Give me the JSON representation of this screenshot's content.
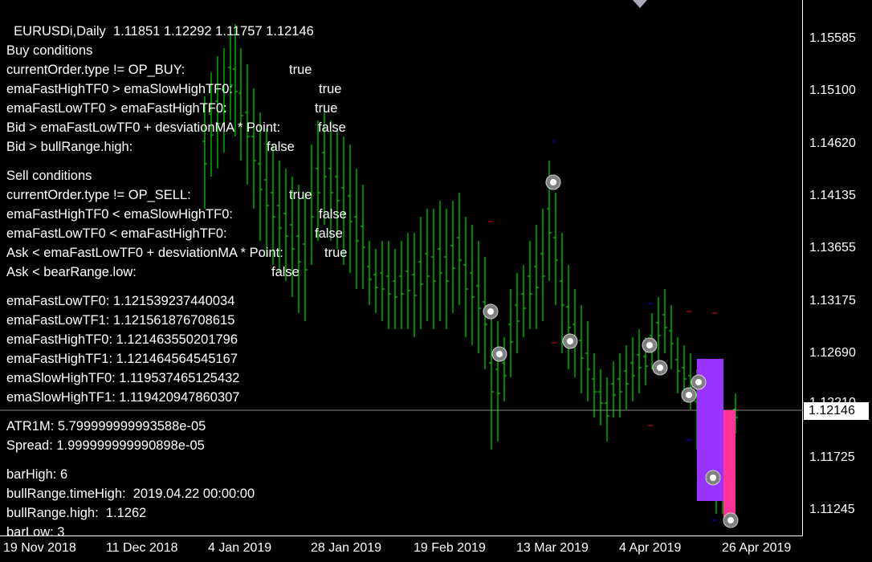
{
  "header": {
    "symbol_tf": "EURUSDi,Daily",
    "ohlc": "1.11851 1.12292 1.11757 1.12146"
  },
  "buy": {
    "title": "Buy conditions",
    "rows": [
      {
        "label": "currentOrder.type != OP_BUY:",
        "value": "true"
      },
      {
        "label": "emaFastHighTF0 > emaSlowHighTF0:",
        "value": "true"
      },
      {
        "label": "emaFastLowTF0 > emaFastHighTF0:",
        "value": "true"
      },
      {
        "label": "Bid > emaFastLowTF0 + desviationMA * Point:",
        "value": "false"
      },
      {
        "label": "Bid > bullRange.high:",
        "value": "false"
      }
    ]
  },
  "sell": {
    "title": "Sell conditions",
    "rows": [
      {
        "label": "currentOrder.type != OP_SELL:",
        "value": "true"
      },
      {
        "label": "emaFastHighTF0 < emaSlowHighTF0:",
        "value": "false"
      },
      {
        "label": "emaFastLowTF0 < emaFastHighTF0:",
        "value": "false"
      },
      {
        "label": "Ask < emaFastLowTF0 + desviationMA * Point:",
        "value": "true"
      },
      {
        "label": "Ask < bearRange.low:",
        "value": "false"
      }
    ]
  },
  "ema": [
    "emaFastLowTF0: 1.121539237440034",
    "emaFastLowTF1: 1.121561876708615",
    "emaFastHighTF0: 1.121463550201796",
    "emaFastHighTF1: 1.121464564545167",
    "emaSlowHighTF0: 1.119537465125432",
    "emaSlowHighTF1: 1.119420947860307"
  ],
  "atr": "ATR1M: 5.799999999993588e-05",
  "spread": "Spread: 1.999999999990898e-05",
  "bar": [
    "barHigh: 6",
    "bullRange.timeHigh:  2019.04.22 00:00:00",
    "bullRange.high:  1.1262",
    "barLow: 3"
  ],
  "price_axis": [
    "1.15585",
    "1.15100",
    "1.14620",
    "1.14135",
    "1.13655",
    "1.13175",
    "1.12690",
    "1.12210",
    "1.11725",
    "1.11245"
  ],
  "current_price": "1.12146",
  "date_axis": [
    "19 Nov 2018",
    "11 Dec 2018",
    "4 Jan 2019",
    "28 Jan 2019",
    "19 Feb 2019",
    "13 Mar 2019",
    "4 Apr 2019",
    "26 Apr 2019"
  ],
  "colors": {
    "bars": "#00ff00",
    "bull_box": "#9933ff",
    "bear_box": "#ff3399",
    "grid": "#ffffff",
    "marker": "#808080"
  }
}
